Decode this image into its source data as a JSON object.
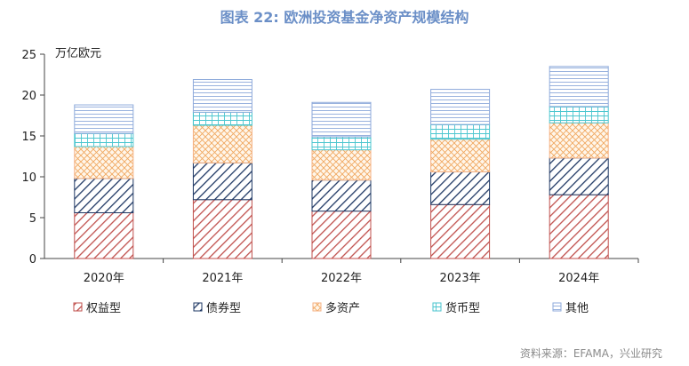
{
  "header": {
    "title": "图表 22: 欧洲投资基金净资产规模结构"
  },
  "footer": {
    "source": "资料来源：EFAMA，兴业研究"
  },
  "chart_data": {
    "type": "bar",
    "stacked": true,
    "title": "图表 22: 欧洲投资基金净资产规模结构",
    "unit_label": "万亿欧元",
    "categories": [
      "2020年",
      "2021年",
      "2022年",
      "2023年",
      "2024年"
    ],
    "ylim": [
      0,
      25
    ],
    "yticks": [
      0,
      5,
      10,
      15,
      20,
      25
    ],
    "grid": false,
    "legend_position": "bottom",
    "series": [
      {
        "name": "权益型",
        "color": "#c0504d",
        "pattern": "diag-red",
        "values": [
          5.6,
          7.2,
          5.8,
          6.6,
          7.8
        ]
      },
      {
        "name": "债券型",
        "color": "#1f3864",
        "pattern": "diag-navy",
        "values": [
          4.2,
          4.5,
          3.8,
          4.0,
          4.5
        ]
      },
      {
        "name": "多资产",
        "color": "#f4b183",
        "pattern": "cross-org",
        "values": [
          3.9,
          4.6,
          3.7,
          4.0,
          4.3
        ]
      },
      {
        "name": "货币型",
        "color": "#4bc6cf",
        "pattern": "grid-teal",
        "values": [
          1.6,
          1.6,
          1.6,
          1.8,
          2.0
        ]
      },
      {
        "name": "其他",
        "color": "#8eaadb",
        "pattern": "horiz-blue",
        "values": [
          3.5,
          4.0,
          4.2,
          4.3,
          4.9
        ]
      }
    ]
  }
}
